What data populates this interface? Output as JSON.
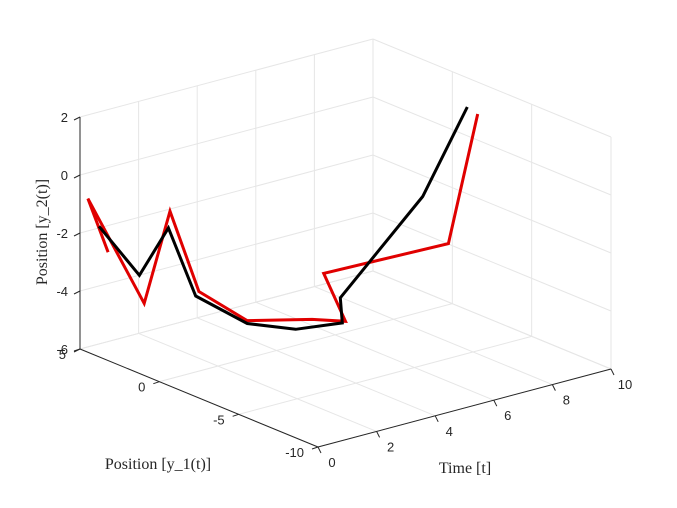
{
  "chart_data": {
    "type": "line3d",
    "xlabel": "Time [t]",
    "ylabel": "Position [y_1(t)]",
    "zlabel": "Position [y_2(t)]",
    "xlim": [
      0,
      10
    ],
    "ylim": [
      -10,
      5
    ],
    "zlim": [
      -6,
      2
    ],
    "xticks": [
      "0",
      "2",
      "4",
      "6",
      "8",
      "10"
    ],
    "yticks": [
      "-10",
      "-5",
      "0",
      "5"
    ],
    "zticks": [
      "-6",
      "-4",
      "-2",
      "0",
      "2"
    ],
    "grid": true,
    "series": [
      {
        "color": "#e00000",
        "points": [
          [
            0.2,
            3.6,
            -2.4
          ],
          [
            0.0,
            4.5,
            -0.7
          ],
          [
            1.0,
            2.8,
            -4.2
          ],
          [
            1.5,
            2.1,
            -1.0
          ],
          [
            2.0,
            1.2,
            -3.7
          ],
          [
            3.0,
            0.0,
            -4.7
          ],
          [
            4.4,
            -1.5,
            -4.7
          ],
          [
            5.0,
            -2.5,
            -4.7
          ],
          [
            5.5,
            -0.2,
            -3.7
          ],
          [
            9.0,
            -1.6,
            -3.3
          ],
          [
            10.0,
            -1.6,
            0.9
          ]
        ]
      },
      {
        "color": "#000000",
        "points": [
          [
            0.0,
            3.8,
            -1.5
          ],
          [
            1.0,
            3.1,
            -3.3
          ],
          [
            1.5,
            2.2,
            -1.6
          ],
          [
            2.0,
            1.4,
            -3.9
          ],
          [
            3.0,
            0.0,
            -4.8
          ],
          [
            4.0,
            -1.2,
            -5.0
          ],
          [
            5.0,
            -2.3,
            -4.8
          ],
          [
            5.2,
            -1.8,
            -4.1
          ],
          [
            8.5,
            -0.9,
            -1.7
          ],
          [
            9.7,
            -1.5,
            1.2
          ]
        ]
      }
    ]
  }
}
